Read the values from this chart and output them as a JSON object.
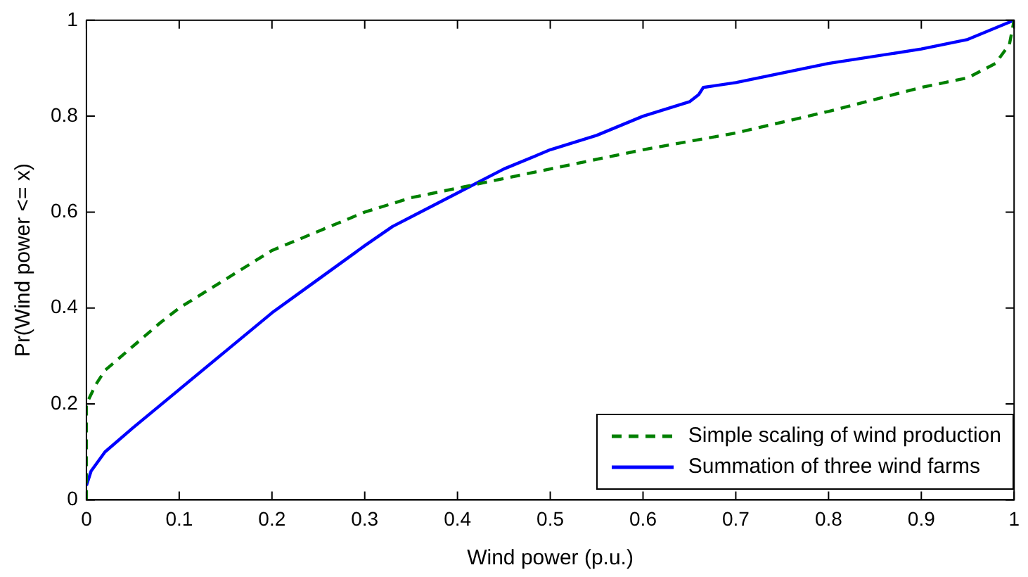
{
  "chart_data": {
    "type": "line",
    "xlabel": "Wind power (p.u.)",
    "ylabel": "Pr(Wind power <= x)",
    "xlim": [
      0,
      1
    ],
    "ylim": [
      0,
      1
    ],
    "xticks": [
      0,
      0.1,
      0.2,
      0.3,
      0.4,
      0.5,
      0.6,
      0.7,
      0.8,
      0.9,
      1
    ],
    "yticks": [
      0,
      0.2,
      0.4,
      0.6,
      0.8,
      1
    ],
    "grid": false,
    "legend": "bottom right",
    "series": [
      {
        "name": "Simple scaling of wind production",
        "color": "#008000",
        "line_style": "dashed",
        "marker": "none",
        "x": [
          0,
          0,
          0.01,
          0.02,
          0.05,
          0.08,
          0.1,
          0.15,
          0.2,
          0.25,
          0.3,
          0.35,
          0.4,
          0.45,
          0.5,
          0.6,
          0.7,
          0.8,
          0.9,
          0.95,
          0.98,
          0.995,
          1
        ],
        "values": [
          0,
          0.2,
          0.24,
          0.27,
          0.32,
          0.37,
          0.4,
          0.46,
          0.52,
          0.56,
          0.6,
          0.63,
          0.65,
          0.67,
          0.69,
          0.73,
          0.765,
          0.81,
          0.86,
          0.88,
          0.91,
          0.95,
          1
        ]
      },
      {
        "name": "Summation of three wind farms",
        "color": "#0000ff",
        "line_style": "solid",
        "marker": "none",
        "x": [
          0,
          0.005,
          0.02,
          0.05,
          0.1,
          0.15,
          0.2,
          0.25,
          0.3,
          0.33,
          0.35,
          0.4,
          0.45,
          0.5,
          0.55,
          0.6,
          0.65,
          0.66,
          0.665,
          0.7,
          0.8,
          0.9,
          0.95,
          1
        ],
        "values": [
          0.03,
          0.06,
          0.1,
          0.15,
          0.23,
          0.31,
          0.39,
          0.46,
          0.53,
          0.57,
          0.59,
          0.64,
          0.69,
          0.73,
          0.76,
          0.8,
          0.83,
          0.845,
          0.86,
          0.87,
          0.91,
          0.94,
          0.96,
          1
        ]
      }
    ]
  }
}
